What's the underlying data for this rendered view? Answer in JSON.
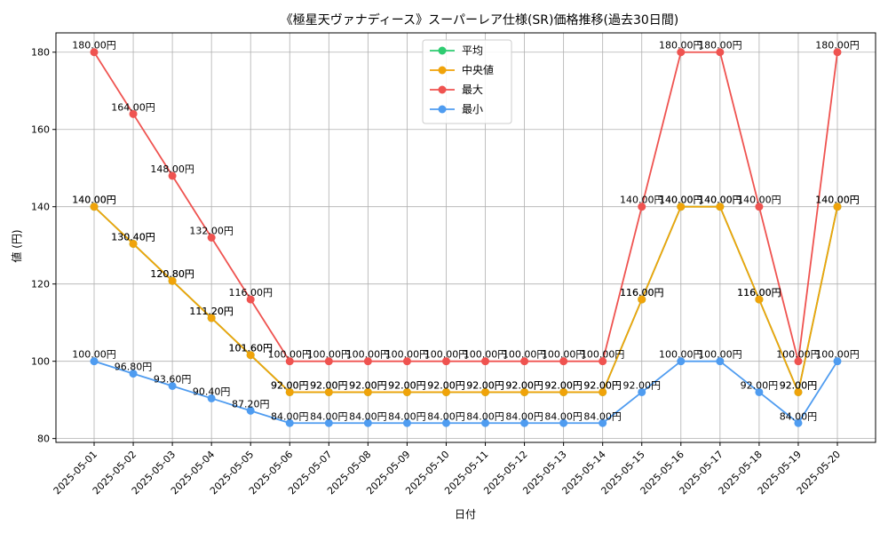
{
  "chart_data": {
    "type": "line",
    "title": "《極星天ヴァナディース》スーパーレア仕様(SR)価格推移(過去30日間)",
    "xlabel": "日付",
    "ylabel": "値 (円)",
    "ylim": [
      79,
      185
    ],
    "yticks": [
      80,
      100,
      120,
      140,
      160,
      180
    ],
    "grid": true,
    "legend_position": "top-center",
    "label_suffix": "円",
    "categories": [
      "2025-05-01",
      "2025-05-02",
      "2025-05-03",
      "2025-05-04",
      "2025-05-05",
      "2025-05-06",
      "2025-05-07",
      "2025-05-08",
      "2025-05-09",
      "2025-05-10",
      "2025-05-11",
      "2025-05-12",
      "2025-05-13",
      "2025-05-14",
      "2025-05-15",
      "2025-05-16",
      "2025-05-17",
      "2025-05-18",
      "2025-05-19",
      "2025-05-20"
    ],
    "series": [
      {
        "name": "平均",
        "color": "#2ecc71",
        "values": [
          140.0,
          130.4,
          120.8,
          111.2,
          101.6,
          92.0,
          92.0,
          92.0,
          92.0,
          92.0,
          92.0,
          92.0,
          92.0,
          92.0,
          116.0,
          140.0,
          140.0,
          116.0,
          92.0,
          140.0
        ]
      },
      {
        "name": "中央値",
        "color": "#f0a30a",
        "values": [
          140.0,
          130.4,
          120.8,
          111.2,
          101.6,
          92.0,
          92.0,
          92.0,
          92.0,
          92.0,
          92.0,
          92.0,
          92.0,
          92.0,
          116.0,
          140.0,
          140.0,
          116.0,
          92.0,
          140.0
        ]
      },
      {
        "name": "最大",
        "color": "#ef5350",
        "values": [
          180.0,
          164.0,
          148.0,
          132.0,
          116.0,
          100.0,
          100.0,
          100.0,
          100.0,
          100.0,
          100.0,
          100.0,
          100.0,
          100.0,
          140.0,
          180.0,
          180.0,
          140.0,
          100.0,
          180.0
        ]
      },
      {
        "name": "最小",
        "color": "#4f9cf0",
        "values": [
          100.0,
          96.8,
          93.6,
          90.4,
          87.2,
          84.0,
          84.0,
          84.0,
          84.0,
          84.0,
          84.0,
          84.0,
          84.0,
          84.0,
          92.0,
          100.0,
          100.0,
          92.0,
          84.0,
          100.0
        ]
      }
    ]
  }
}
